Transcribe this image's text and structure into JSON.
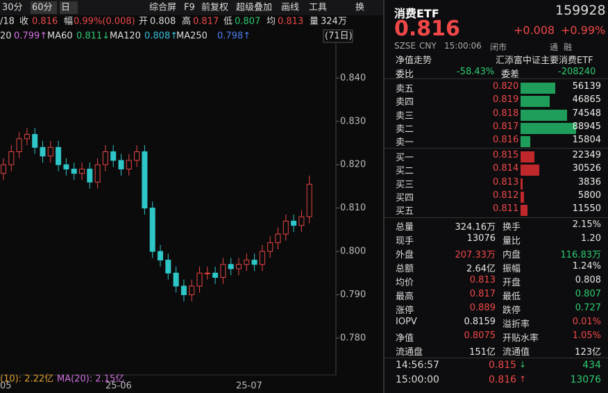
{
  "toolbar": {
    "periods": [
      "30分",
      "60分",
      "日"
    ],
    "tools": [
      "综合屏",
      "F9",
      "前复权",
      "超级叠加",
      "画线",
      "工具"
    ],
    "extra": "换"
  },
  "info_line": [
    "/18",
    "收",
    "0.816",
    "幅",
    "0.99%(0.008)",
    "开",
    "0.808",
    "高",
    "0.817",
    "低",
    "0.807",
    "均",
    "0.813",
    "量",
    "324万"
  ],
  "ma_line": [
    "20",
    "0.799↑",
    "MA60",
    "0.811↓",
    "MA120",
    "0.808↑",
    "MA250",
    "0.798↑"
  ],
  "days": "(71日)",
  "chart": {
    "type": "candlestick",
    "ylim": [
      0.7715,
      0.858
    ],
    "yticks": [
      {
        "value": 0.84,
        "label": "0.840"
      },
      {
        "value": 0.83,
        "label": "0.830"
      },
      {
        "value": 0.82,
        "label": "0.820"
      },
      {
        "value": 0.81,
        "label": "0.810"
      },
      {
        "value": 0.8,
        "label": "0.800"
      },
      {
        "value": 0.79,
        "label": "0.790"
      },
      {
        "value": 0.78,
        "label": "0.780"
      }
    ],
    "x_labels": [
      "05",
      "25-06",
      "25-07"
    ],
    "up_color": "#e84545",
    "down_color": "#2fc6c8",
    "open": [
      0.818,
      0.82,
      0.823,
      0.826,
      0.827,
      0.824,
      0.822,
      0.824,
      0.82,
      0.819,
      0.818,
      0.819,
      0.816,
      0.82,
      0.823,
      0.821,
      0.819,
      0.821,
      0.823,
      0.81,
      0.8,
      0.798,
      0.795,
      0.792,
      0.79,
      0.792,
      0.795,
      0.795,
      0.794,
      0.797,
      0.796,
      0.797,
      0.798,
      0.797,
      0.8,
      0.802,
      0.804,
      0.807,
      0.806,
      0.808
    ],
    "high": [
      0.8215,
      0.8245,
      0.8275,
      0.8285,
      0.8285,
      0.8255,
      0.8255,
      0.8255,
      0.8215,
      0.8205,
      0.8205,
      0.8205,
      0.8215,
      0.8245,
      0.8245,
      0.8225,
      0.8225,
      0.8245,
      0.8245,
      0.8115,
      0.8015,
      0.7995,
      0.7965,
      0.7935,
      0.7935,
      0.7965,
      0.7965,
      0.7965,
      0.7985,
      0.7985,
      0.7985,
      0.7995,
      0.7995,
      0.8015,
      0.8035,
      0.8055,
      0.8085,
      0.8085,
      0.8095,
      0.8175
    ],
    "low": [
      0.8165,
      0.8185,
      0.8215,
      0.8245,
      0.8225,
      0.8205,
      0.8205,
      0.8185,
      0.8175,
      0.8165,
      0.8165,
      0.8145,
      0.8145,
      0.8185,
      0.8195,
      0.8175,
      0.8175,
      0.8195,
      0.8085,
      0.7985,
      0.7965,
      0.7935,
      0.7905,
      0.7885,
      0.7885,
      0.7905,
      0.7935,
      0.7925,
      0.7925,
      0.7945,
      0.7945,
      0.7955,
      0.7955,
      0.7955,
      0.7985,
      0.8005,
      0.8025,
      0.8045,
      0.8045,
      0.8065
    ],
    "close": [
      0.82,
      0.823,
      0.826,
      0.827,
      0.824,
      0.822,
      0.824,
      0.82,
      0.819,
      0.818,
      0.819,
      0.816,
      0.82,
      0.823,
      0.821,
      0.819,
      0.821,
      0.823,
      0.81,
      0.8,
      0.798,
      0.795,
      0.792,
      0.79,
      0.792,
      0.795,
      0.795,
      0.794,
      0.797,
      0.796,
      0.797,
      0.798,
      0.797,
      0.8,
      0.802,
      0.804,
      0.807,
      0.806,
      0.808,
      0.8155
    ]
  },
  "volume_line": [
    "(10): 2.22亿",
    "MA(20): 2.15亿"
  ],
  "quote": {
    "name": "消费ETF",
    "code": "159928",
    "price": "0.816",
    "change": "+0.008",
    "pct": "+0.99%",
    "sub": [
      "SZSE",
      "CNY",
      "15:00:06",
      "闭市"
    ],
    "flags": [
      "通",
      "融"
    ],
    "tabs": [
      "净值走势",
      "汇添富中证主要消费ETF"
    ],
    "weibi": [
      "委比",
      "-58.43%",
      "委差",
      "-208240"
    ],
    "asks": [
      {
        "label": "卖五",
        "price": "0.820",
        "volume": 56139
      },
      {
        "label": "卖四",
        "price": "0.819",
        "volume": 46865
      },
      {
        "label": "卖三",
        "price": "0.818",
        "volume": 74548
      },
      {
        "label": "卖二",
        "price": "0.817",
        "volume": 88945
      },
      {
        "label": "卖一",
        "price": "0.816",
        "volume": 15804
      }
    ],
    "bids": [
      {
        "label": "买一",
        "price": "0.815",
        "volume": 22349
      },
      {
        "label": "买二",
        "price": "0.814",
        "volume": 30526
      },
      {
        "label": "买三",
        "price": "0.813",
        "volume": 3836
      },
      {
        "label": "买四",
        "price": "0.812",
        "volume": 5800
      },
      {
        "label": "买五",
        "price": "0.811",
        "volume": 11550
      }
    ],
    "stats": [
      [
        "总量",
        "324.16万",
        "flat",
        "换手",
        "2.15%",
        "flat"
      ],
      [
        "现手",
        "13076",
        "flat",
        "量比",
        "1.20",
        "flat"
      ],
      [
        "外盘",
        "207.33万",
        "up",
        "内盘",
        "116.83万",
        "down"
      ],
      [
        "总额",
        "2.64亿",
        "flat",
        "振幅",
        "1.24%",
        "flat"
      ],
      [
        "均价",
        "0.813",
        "up",
        "开盘",
        "0.808",
        "flat"
      ],
      [
        "最高",
        "0.817",
        "up",
        "最低",
        "0.807",
        "down"
      ],
      [
        "涨停",
        "0.889",
        "up",
        "跌停",
        "0.727",
        "down"
      ],
      [
        "IOPV",
        "0.8159",
        "flat",
        "溢折率",
        "0.01%",
        "up"
      ],
      [
        "净值",
        "0.8075",
        "up",
        "开贴水率",
        "1.05%",
        "up"
      ],
      [
        "流通盘",
        "151亿",
        "flat",
        "流通值",
        "123亿",
        "flat"
      ]
    ],
    "trades": [
      [
        "14:56:57",
        "0.815",
        "↓",
        "434"
      ],
      [
        "15:00:00",
        "0.816",
        "↑",
        "13076"
      ]
    ]
  }
}
